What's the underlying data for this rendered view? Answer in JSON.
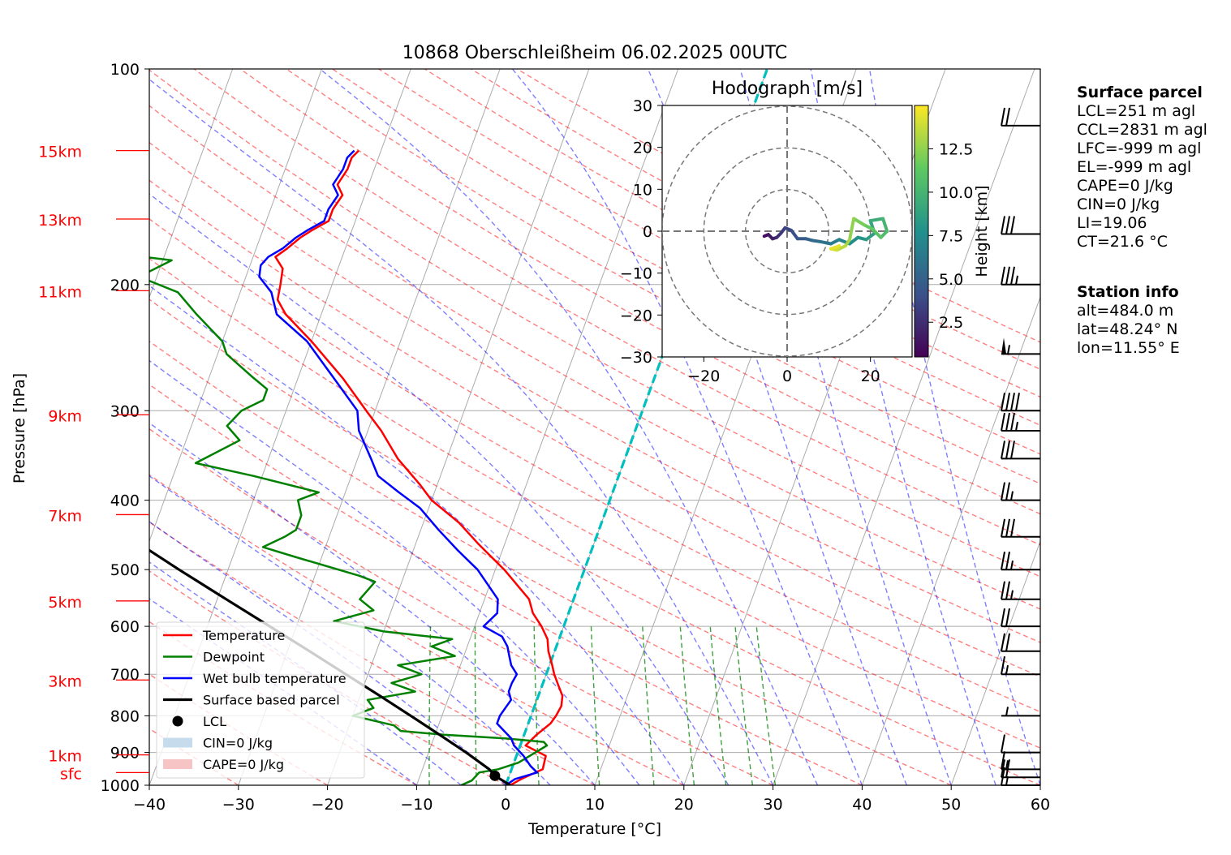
{
  "title": "10868 Oberschleißheim 06.02.2025 00UTC",
  "chart_data": {
    "type": "skew-t",
    "xlabel": "Temperature [°C]",
    "ylabel": "Pressure [hPa]",
    "xlim": [
      -40,
      60
    ],
    "plim": [
      1000,
      100
    ],
    "x_ticks": [
      -40,
      -30,
      -20,
      -10,
      0,
      10,
      20,
      30,
      40,
      50,
      60
    ],
    "p_ticks": [
      100,
      200,
      300,
      400,
      500,
      600,
      700,
      800,
      900,
      1000
    ],
    "height_labels": [
      {
        "label": "15km",
        "p": 130
      },
      {
        "label": "13km",
        "p": 162
      },
      {
        "label": "11km",
        "p": 204
      },
      {
        "label": "9km",
        "p": 304
      },
      {
        "label": "7km",
        "p": 419
      },
      {
        "label": "5km",
        "p": 553
      },
      {
        "label": "3km",
        "p": 713
      },
      {
        "label": "1km",
        "p": 907
      },
      {
        "label": "sfc",
        "p": 960
      }
    ],
    "series": [
      {
        "name": "Temperature",
        "color": "#ff0000",
        "points": [
          [
            1000,
            0.5
          ],
          [
            980,
            1.5
          ],
          [
            950,
            3.5
          ],
          [
            910,
            3.3
          ],
          [
            880,
            0.6
          ],
          [
            850,
            1.4
          ],
          [
            820,
            2.5
          ],
          [
            800,
            2.8
          ],
          [
            775,
            3.0
          ],
          [
            750,
            2.7
          ],
          [
            725,
            1.8
          ],
          [
            700,
            0.9
          ],
          [
            680,
            0.3
          ],
          [
            650,
            -0.7
          ],
          [
            625,
            -1.3
          ],
          [
            600,
            -2.5
          ],
          [
            575,
            -4.0
          ],
          [
            550,
            -5.0
          ],
          [
            500,
            -9.0
          ],
          [
            460,
            -13.0
          ],
          [
            430,
            -16.0
          ],
          [
            400,
            -20.0
          ],
          [
            380,
            -22.0
          ],
          [
            350,
            -25.5
          ],
          [
            320,
            -28.5
          ],
          [
            300,
            -31.0
          ],
          [
            270,
            -35.0
          ],
          [
            240,
            -40.0
          ],
          [
            220,
            -44.0
          ],
          [
            210,
            -45.5
          ],
          [
            200,
            -45.8
          ],
          [
            190,
            -46.2
          ],
          [
            183,
            -47.5
          ],
          [
            178,
            -46.5
          ],
          [
            172,
            -45.5
          ],
          [
            168,
            -44.5
          ],
          [
            163,
            -43.0
          ],
          [
            157,
            -43.0
          ],
          [
            150,
            -42.5
          ],
          [
            145,
            -43.5
          ],
          [
            138,
            -43.0
          ],
          [
            133,
            -43.0
          ],
          [
            130,
            -42.5
          ]
        ]
      },
      {
        "name": "Dewpoint",
        "color": "#008000",
        "points": [
          [
            1000,
            -5.0
          ],
          [
            985,
            -4.0
          ],
          [
            960,
            -3.5
          ],
          [
            950,
            -1.5
          ],
          [
            930,
            0.5
          ],
          [
            900,
            2.0
          ],
          [
            880,
            3.0
          ],
          [
            870,
            2.5
          ],
          [
            860,
            -2.0
          ],
          [
            850,
            -9.0
          ],
          [
            840,
            -14.0
          ],
          [
            825,
            -15.0
          ],
          [
            800,
            -20.0
          ],
          [
            780,
            -18.0
          ],
          [
            760,
            -19.0
          ],
          [
            740,
            -14.0
          ],
          [
            720,
            -17.0
          ],
          [
            700,
            -14.0
          ],
          [
            680,
            -17.0
          ],
          [
            660,
            -11.0
          ],
          [
            640,
            -14.0
          ],
          [
            625,
            -12.0
          ],
          [
            610,
            -20.0
          ],
          [
            590,
            -26.0
          ],
          [
            570,
            -22.0
          ],
          [
            550,
            -24.0
          ],
          [
            520,
            -23.0
          ],
          [
            510,
            -25.0
          ],
          [
            480,
            -33.0
          ],
          [
            465,
            -37.0
          ],
          [
            450,
            -35.0
          ],
          [
            440,
            -34.0
          ],
          [
            420,
            -34.0
          ],
          [
            400,
            -35.0
          ],
          [
            390,
            -33.0
          ],
          [
            370,
            -41.0
          ],
          [
            355,
            -48.0
          ],
          [
            330,
            -44.0
          ],
          [
            315,
            -46.0
          ],
          [
            300,
            -45.0
          ],
          [
            290,
            -43.0
          ],
          [
            280,
            -43.0
          ],
          [
            270,
            -45.0
          ],
          [
            250,
            -49.0
          ],
          [
            240,
            -50.0
          ],
          [
            220,
            -54.0
          ],
          [
            205,
            -57.0
          ],
          [
            195,
            -62.0
          ],
          [
            185,
            -59.0
          ],
          [
            180,
            -67.0
          ],
          [
            170,
            -63.0
          ],
          [
            160,
            -64.0
          ],
          [
            150,
            -65.0
          ],
          [
            140,
            -66.0
          ],
          [
            133,
            -67.0
          ],
          [
            130,
            -67.0
          ]
        ]
      },
      {
        "name": "Wet bulb temperature",
        "color": "#0000ff",
        "points": [
          [
            1000,
            0.0
          ],
          [
            980,
            0.8
          ],
          [
            960,
            3.0
          ],
          [
            940,
            2.0
          ],
          [
            910,
            0.8
          ],
          [
            880,
            -0.7
          ],
          [
            860,
            -1.3
          ],
          [
            840,
            -2.4
          ],
          [
            820,
            -3.5
          ],
          [
            800,
            -3.5
          ],
          [
            780,
            -3.2
          ],
          [
            760,
            -2.9
          ],
          [
            740,
            -3.5
          ],
          [
            720,
            -3.5
          ],
          [
            700,
            -3.3
          ],
          [
            680,
            -4.3
          ],
          [
            660,
            -4.9
          ],
          [
            640,
            -5.5
          ],
          [
            620,
            -6.5
          ],
          [
            600,
            -9.0
          ],
          [
            575,
            -8.0
          ],
          [
            550,
            -8.5
          ],
          [
            500,
            -12.0
          ],
          [
            470,
            -15.0
          ],
          [
            440,
            -18.0
          ],
          [
            410,
            -21.0
          ],
          [
            390,
            -24.0
          ],
          [
            370,
            -27.0
          ],
          [
            350,
            -28.5
          ],
          [
            320,
            -31.0
          ],
          [
            300,
            -32.0
          ],
          [
            270,
            -36.0
          ],
          [
            240,
            -40.5
          ],
          [
            220,
            -45.0
          ],
          [
            205,
            -46.5
          ],
          [
            195,
            -48.5
          ],
          [
            188,
            -48.8
          ],
          [
            183,
            -48.3
          ],
          [
            178,
            -47.0
          ],
          [
            172,
            -46.0
          ],
          [
            168,
            -45.0
          ],
          [
            163,
            -43.5
          ],
          [
            157,
            -43.5
          ],
          [
            150,
            -43.0
          ],
          [
            145,
            -44.0
          ],
          [
            138,
            -43.5
          ],
          [
            133,
            -43.5
          ],
          [
            130,
            -43.0
          ]
        ]
      },
      {
        "name": "Surface based parcel",
        "color": "#000000",
        "points": [
          [
            1000,
            0.5
          ],
          [
            970,
            -1.6
          ],
          [
            950,
            -2.5
          ],
          [
            900,
            -5.8
          ],
          [
            850,
            -9.5
          ],
          [
            800,
            -13.5
          ],
          [
            750,
            -17.8
          ],
          [
            700,
            -22.5
          ],
          [
            650,
            -27.5
          ],
          [
            600,
            -33.0
          ],
          [
            550,
            -39.0
          ],
          [
            500,
            -45.5
          ],
          [
            450,
            -52.5
          ],
          [
            400,
            -60.5
          ],
          [
            350,
            -69.0
          ],
          [
            300,
            -78.5
          ],
          [
            260,
            -86.0
          ]
        ]
      }
    ],
    "lcl": {
      "p": 970,
      "t": -1.6,
      "label": "LCL"
    },
    "legend": [
      {
        "label": "Temperature",
        "kind": "line",
        "color": "#ff0000"
      },
      {
        "label": "Dewpoint",
        "kind": "line",
        "color": "#008000"
      },
      {
        "label": "Wet bulb temperature",
        "kind": "line",
        "color": "#0000ff"
      },
      {
        "label": "Surface based parcel",
        "kind": "line",
        "color": "#000000"
      },
      {
        "label": "LCL",
        "kind": "dot",
        "color": "#000000"
      },
      {
        "label": "CIN=0 J/kg",
        "kind": "patch",
        "color": "#c6dcec"
      },
      {
        "label": "CAPE=0 J/kg",
        "kind": "patch",
        "color": "#f7c4c6"
      }
    ],
    "legend_position": "lower-left",
    "grid": true,
    "wind_barbs": [
      {
        "p": 1000,
        "kt": 15
      },
      {
        "p": 975,
        "kt": 20
      },
      {
        "p": 950,
        "kt": 15
      },
      {
        "p": 900,
        "kt": 10
      },
      {
        "p": 800,
        "kt": 5
      },
      {
        "p": 700,
        "kt": 15
      },
      {
        "p": 650,
        "kt": 20
      },
      {
        "p": 600,
        "kt": 20
      },
      {
        "p": 550,
        "kt": 25
      },
      {
        "p": 500,
        "kt": 25
      },
      {
        "p": 450,
        "kt": 30
      },
      {
        "p": 400,
        "kt": 25
      },
      {
        "p": 350,
        "kt": 30
      },
      {
        "p": 320,
        "kt": 35
      },
      {
        "p": 300,
        "kt": 40
      },
      {
        "p": 250,
        "kt": 55
      },
      {
        "p": 200,
        "kt": 35
      },
      {
        "p": 170,
        "kt": 30
      },
      {
        "p": 120,
        "kt": 20
      }
    ],
    "hodograph": {
      "title": "Hodograph [m/s]",
      "xlim": [
        -30,
        30
      ],
      "ylim": [
        -30,
        30
      ],
      "ticks": [
        -20,
        0,
        20
      ],
      "y_ticks": [
        -30,
        -20,
        -10,
        0,
        10,
        20,
        30
      ],
      "rings": [
        10,
        20,
        30
      ],
      "colorbar_label": "Height [km]",
      "colorbar_ticks": [
        2.5,
        5.0,
        7.5,
        10.0,
        12.5
      ],
      "colorbar_range": [
        0.5,
        15
      ],
      "points": [
        [
          -5.5,
          -1.2,
          0.5
        ],
        [
          -4.5,
          -0.8,
          1.0
        ],
        [
          -3.5,
          -1.8,
          1.5
        ],
        [
          -2.5,
          -1.5,
          2.0
        ],
        [
          -1.5,
          -0.5,
          2.5
        ],
        [
          -0.5,
          0.8,
          3.0
        ],
        [
          1.0,
          0.2,
          3.5
        ],
        [
          2.5,
          -1.8,
          4.0
        ],
        [
          4.5,
          -1.8,
          4.5
        ],
        [
          6.0,
          -2.2,
          5.0
        ],
        [
          8.0,
          -2.5,
          5.5
        ],
        [
          10.5,
          -3.0,
          6.0
        ],
        [
          12.5,
          -2.0,
          6.5
        ],
        [
          15.0,
          -3.0,
          7.0
        ],
        [
          17.0,
          -1.5,
          7.5
        ],
        [
          19.0,
          -2.0,
          8.0
        ],
        [
          21.0,
          -0.5,
          8.5
        ],
        [
          20.0,
          2.5,
          9.0
        ],
        [
          23.0,
          3.0,
          9.5
        ],
        [
          24.0,
          0.0,
          10.0
        ],
        [
          22.5,
          -1.5,
          10.5
        ],
        [
          20.5,
          0.5,
          11.0
        ],
        [
          18.5,
          1.5,
          11.5
        ],
        [
          16.0,
          3.0,
          12.0
        ],
        [
          15.0,
          -2.0,
          12.5
        ],
        [
          14.0,
          -3.5,
          13.0
        ],
        [
          12.0,
          -4.5,
          13.5
        ],
        [
          10.5,
          -4.2,
          14.0
        ],
        [
          12.5,
          -3.5,
          14.5
        ]
      ]
    }
  },
  "surface_parcel": {
    "title": "Surface parcel",
    "lines": [
      "LCL=251 m agl",
      "CCL=2831 m agl",
      "LFC=-999 m agl",
      "EL=-999 m agl",
      "CAPE=0 J/kg",
      "CIN=0 J/kg",
      "LI=19.06",
      "CT=21.6 °C"
    ]
  },
  "station_info": {
    "title": "Station info",
    "lines": [
      "alt=484.0 m",
      "lat=48.24° N",
      "lon=11.55° E"
    ]
  }
}
